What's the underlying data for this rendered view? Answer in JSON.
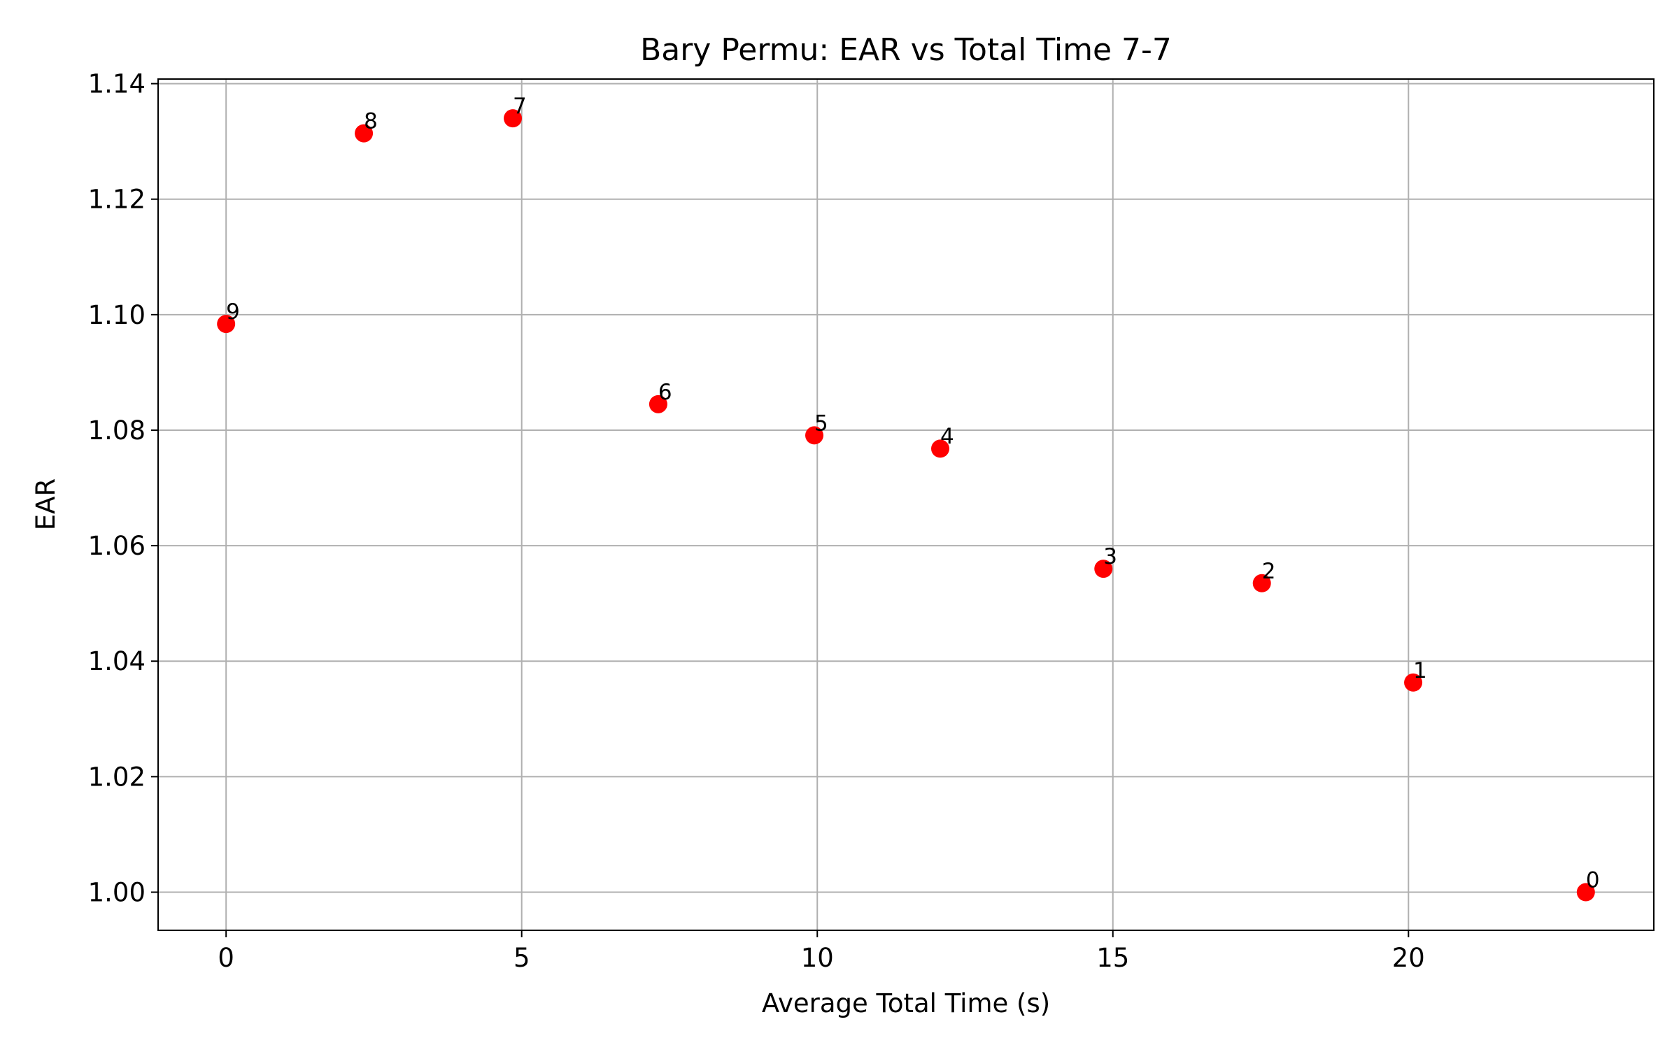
{
  "chart_data": {
    "type": "scatter",
    "title": "Bary Permu: EAR vs Total Time 7-7",
    "xlabel": "Average Total Time (s)",
    "ylabel": "EAR",
    "xlim": [
      -1.15,
      24.15
    ],
    "ylim": [
      0.9934,
      1.1408
    ],
    "xticks": [
      0,
      5,
      10,
      15,
      20
    ],
    "xtick_labels": [
      "0",
      "5",
      "10",
      "15",
      "20"
    ],
    "yticks": [
      1.0,
      1.02,
      1.04,
      1.06,
      1.08,
      1.1,
      1.12,
      1.14
    ],
    "ytick_labels": [
      "1.00",
      "1.02",
      "1.04",
      "1.06",
      "1.08",
      "1.10",
      "1.12",
      "1.14"
    ],
    "grid": true,
    "marker_color": "#ff0000",
    "points": [
      {
        "label": "0",
        "x": 23.0,
        "y": 1.0
      },
      {
        "label": "1",
        "x": 20.08,
        "y": 1.0363
      },
      {
        "label": "2",
        "x": 17.52,
        "y": 1.0535
      },
      {
        "label": "3",
        "x": 14.84,
        "y": 1.056
      },
      {
        "label": "4",
        "x": 12.08,
        "y": 1.0768
      },
      {
        "label": "5",
        "x": 9.95,
        "y": 1.0791
      },
      {
        "label": "6",
        "x": 7.31,
        "y": 1.0845
      },
      {
        "label": "7",
        "x": 4.85,
        "y": 1.134
      },
      {
        "label": "8",
        "x": 2.33,
        "y": 1.1314
      },
      {
        "label": "9",
        "x": 0.0,
        "y": 1.0984
      }
    ]
  }
}
